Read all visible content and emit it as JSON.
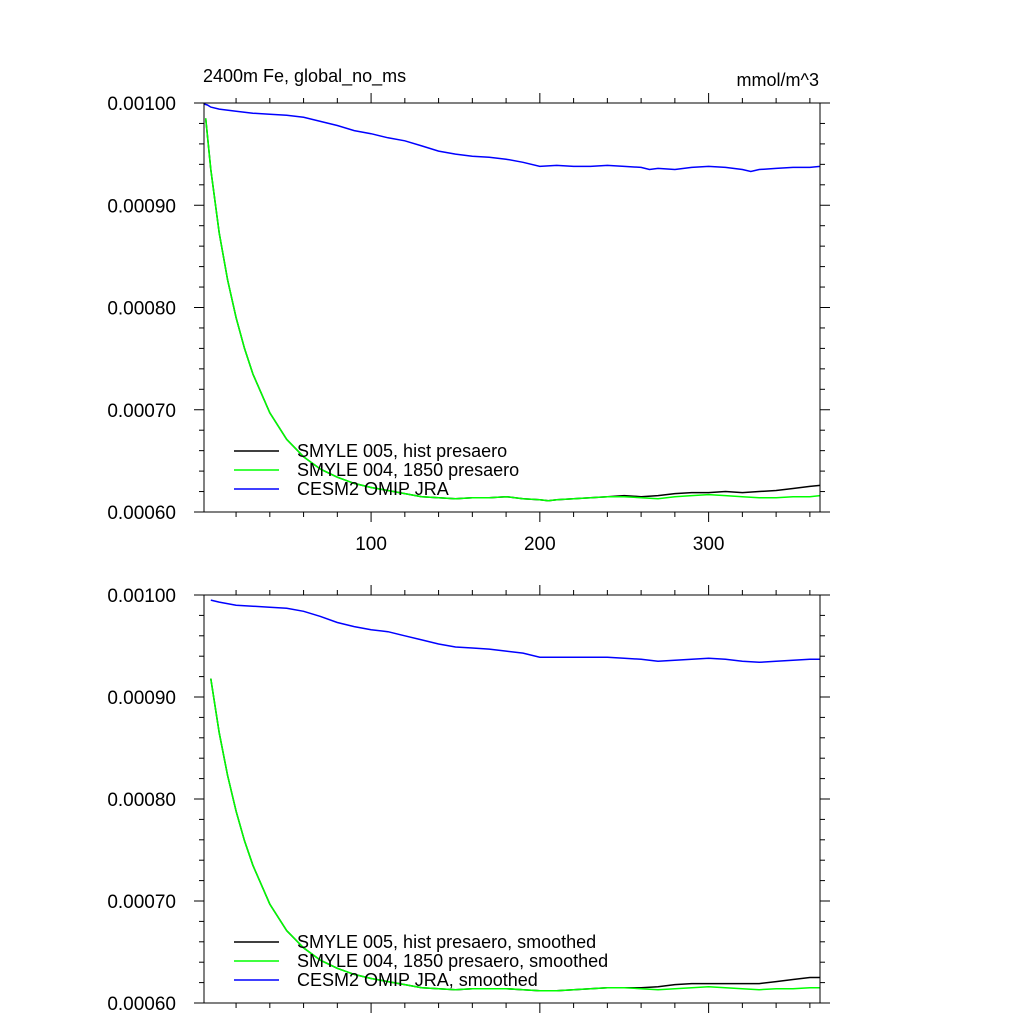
{
  "chart_data": [
    {
      "type": "line",
      "title": "2400m Fe, global_no_ms",
      "units": "mmol/m^3",
      "xlim": [
        1,
        366
      ],
      "ylim": [
        0.0006,
        0.001
      ],
      "x_ticks": [
        100,
        200,
        300
      ],
      "x_tick_labels": [
        "100",
        "200",
        "300"
      ],
      "y_ticks": [
        0.0006,
        0.0007,
        0.0008,
        0.0009,
        0.001
      ],
      "y_tick_labels": [
        "0.00060",
        "0.00070",
        "0.00080",
        "0.00090",
        "0.00100"
      ],
      "grid": false,
      "legend_position": "bottom-left",
      "series": [
        {
          "name": "SMYLE 005, hist presaero",
          "color": "#000000",
          "points": [
            [
              2,
              0.000985
            ],
            [
              5,
              0.000935
            ],
            [
              10,
              0.000873
            ],
            [
              15,
              0.000827
            ],
            [
              20,
              0.00079
            ],
            [
              25,
              0.00076
            ],
            [
              30,
              0.000735
            ],
            [
              40,
              0.000697
            ],
            [
              50,
              0.000671
            ],
            [
              60,
              0.000654
            ],
            [
              70,
              0.000642
            ],
            [
              80,
              0.000634
            ],
            [
              90,
              0.000628
            ],
            [
              100,
              0.000624
            ],
            [
              110,
              0.000621
            ],
            [
              120,
              0.000618
            ],
            [
              130,
              0.000615
            ],
            [
              140,
              0.000614
            ],
            [
              150,
              0.000613
            ],
            [
              160,
              0.000614
            ],
            [
              170,
              0.000614
            ],
            [
              180,
              0.000615
            ],
            [
              190,
              0.000613
            ],
            [
              200,
              0.000612
            ],
            [
              205,
              0.000611
            ],
            [
              210,
              0.000612
            ],
            [
              220,
              0.000613
            ],
            [
              230,
              0.000614
            ],
            [
              240,
              0.000615
            ],
            [
              250,
              0.000616
            ],
            [
              260,
              0.000615
            ],
            [
              270,
              0.000616
            ],
            [
              280,
              0.000618
            ],
            [
              290,
              0.000619
            ],
            [
              300,
              0.000619
            ],
            [
              310,
              0.00062
            ],
            [
              320,
              0.000619
            ],
            [
              330,
              0.00062
            ],
            [
              340,
              0.000621
            ],
            [
              350,
              0.000623
            ],
            [
              360,
              0.000625
            ],
            [
              366,
              0.000626
            ]
          ]
        },
        {
          "name": "SMYLE 004, 1850 presaero",
          "color": "#00ff00",
          "points": [
            [
              2,
              0.000985
            ],
            [
              5,
              0.000935
            ],
            [
              10,
              0.000873
            ],
            [
              15,
              0.000827
            ],
            [
              20,
              0.00079
            ],
            [
              25,
              0.00076
            ],
            [
              30,
              0.000735
            ],
            [
              40,
              0.000697
            ],
            [
              50,
              0.000671
            ],
            [
              60,
              0.000654
            ],
            [
              70,
              0.000642
            ],
            [
              80,
              0.000634
            ],
            [
              90,
              0.000628
            ],
            [
              100,
              0.000624
            ],
            [
              110,
              0.000621
            ],
            [
              120,
              0.000618
            ],
            [
              130,
              0.000615
            ],
            [
              140,
              0.000614
            ],
            [
              150,
              0.000613
            ],
            [
              160,
              0.000614
            ],
            [
              170,
              0.000614
            ],
            [
              180,
              0.000615
            ],
            [
              190,
              0.000613
            ],
            [
              200,
              0.000612
            ],
            [
              205,
              0.000611
            ],
            [
              210,
              0.000612
            ],
            [
              220,
              0.000613
            ],
            [
              230,
              0.000614
            ],
            [
              240,
              0.000615
            ],
            [
              250,
              0.000615
            ],
            [
              260,
              0.000614
            ],
            [
              270,
              0.000613
            ],
            [
              280,
              0.000615
            ],
            [
              290,
              0.000616
            ],
            [
              300,
              0.000617
            ],
            [
              310,
              0.000616
            ],
            [
              320,
              0.000615
            ],
            [
              330,
              0.000614
            ],
            [
              340,
              0.000614
            ],
            [
              350,
              0.000615
            ],
            [
              360,
              0.000615
            ],
            [
              366,
              0.000616
            ]
          ]
        },
        {
          "name": "CESM2 OMIP JRA",
          "color": "#0000ff",
          "points": [
            [
              1,
              0.000999
            ],
            [
              3,
              0.000998
            ],
            [
              5,
              0.000996
            ],
            [
              10,
              0.000994
            ],
            [
              20,
              0.000992
            ],
            [
              30,
              0.00099
            ],
            [
              40,
              0.000989
            ],
            [
              50,
              0.000988
            ],
            [
              60,
              0.000986
            ],
            [
              70,
              0.000982
            ],
            [
              80,
              0.000978
            ],
            [
              90,
              0.000973
            ],
            [
              100,
              0.00097
            ],
            [
              110,
              0.000966
            ],
            [
              120,
              0.000963
            ],
            [
              130,
              0.000958
            ],
            [
              140,
              0.000953
            ],
            [
              150,
              0.00095
            ],
            [
              160,
              0.000948
            ],
            [
              170,
              0.000947
            ],
            [
              180,
              0.000945
            ],
            [
              190,
              0.000942
            ],
            [
              200,
              0.000938
            ],
            [
              210,
              0.000939
            ],
            [
              220,
              0.000938
            ],
            [
              230,
              0.000938
            ],
            [
              240,
              0.000939
            ],
            [
              250,
              0.000938
            ],
            [
              260,
              0.000937
            ],
            [
              265,
              0.000935
            ],
            [
              270,
              0.000936
            ],
            [
              280,
              0.000935
            ],
            [
              290,
              0.000937
            ],
            [
              300,
              0.000938
            ],
            [
              310,
              0.000937
            ],
            [
              320,
              0.000935
            ],
            [
              325,
              0.000933
            ],
            [
              330,
              0.000935
            ],
            [
              340,
              0.000936
            ],
            [
              350,
              0.000937
            ],
            [
              360,
              0.000937
            ],
            [
              366,
              0.000938
            ]
          ]
        }
      ]
    },
    {
      "type": "line",
      "title": "",
      "xlim": [
        1,
        366
      ],
      "ylim": [
        0.0006,
        0.001
      ],
      "x_ticks": [
        100,
        200,
        300
      ],
      "x_tick_labels": [],
      "y_ticks": [
        0.0006,
        0.0007,
        0.0008,
        0.0009,
        0.001
      ],
      "y_tick_labels": [
        "0.00060",
        "0.00070",
        "0.00080",
        "0.00090",
        "0.00100"
      ],
      "grid": false,
      "legend_position": "bottom-left",
      "series": [
        {
          "name": "SMYLE 005, hist presaero, smoothed",
          "color": "#000000",
          "points": [
            [
              5,
              0.000918
            ],
            [
              10,
              0.000865
            ],
            [
              15,
              0.000823
            ],
            [
              20,
              0.000788
            ],
            [
              25,
              0.000759
            ],
            [
              30,
              0.000735
            ],
            [
              40,
              0.000697
            ],
            [
              50,
              0.000671
            ],
            [
              60,
              0.000654
            ],
            [
              70,
              0.000642
            ],
            [
              80,
              0.000634
            ],
            [
              90,
              0.000628
            ],
            [
              100,
              0.000624
            ],
            [
              110,
              0.000621
            ],
            [
              120,
              0.000618
            ],
            [
              130,
              0.000615
            ],
            [
              140,
              0.000614
            ],
            [
              150,
              0.000613
            ],
            [
              160,
              0.000614
            ],
            [
              170,
              0.000614
            ],
            [
              180,
              0.000614
            ],
            [
              190,
              0.000613
            ],
            [
              200,
              0.000612
            ],
            [
              210,
              0.000612
            ],
            [
              220,
              0.000613
            ],
            [
              230,
              0.000614
            ],
            [
              240,
              0.000615
            ],
            [
              250,
              0.000615
            ],
            [
              260,
              0.000615
            ],
            [
              270,
              0.000616
            ],
            [
              280,
              0.000618
            ],
            [
              290,
              0.000619
            ],
            [
              300,
              0.000619
            ],
            [
              310,
              0.000619
            ],
            [
              320,
              0.000619
            ],
            [
              330,
              0.000619
            ],
            [
              340,
              0.000621
            ],
            [
              350,
              0.000623
            ],
            [
              360,
              0.000625
            ],
            [
              366,
              0.000625
            ]
          ]
        },
        {
          "name": "SMYLE 004, 1850 presaero, smoothed",
          "color": "#00ff00",
          "points": [
            [
              5,
              0.000918
            ],
            [
              10,
              0.000865
            ],
            [
              15,
              0.000823
            ],
            [
              20,
              0.000788
            ],
            [
              25,
              0.000759
            ],
            [
              30,
              0.000735
            ],
            [
              40,
              0.000697
            ],
            [
              50,
              0.000671
            ],
            [
              60,
              0.000654
            ],
            [
              70,
              0.000642
            ],
            [
              80,
              0.000634
            ],
            [
              90,
              0.000628
            ],
            [
              100,
              0.000624
            ],
            [
              110,
              0.000621
            ],
            [
              120,
              0.000618
            ],
            [
              130,
              0.000615
            ],
            [
              140,
              0.000614
            ],
            [
              150,
              0.000613
            ],
            [
              160,
              0.000614
            ],
            [
              170,
              0.000614
            ],
            [
              180,
              0.000614
            ],
            [
              190,
              0.000613
            ],
            [
              200,
              0.000612
            ],
            [
              210,
              0.000612
            ],
            [
              220,
              0.000613
            ],
            [
              230,
              0.000614
            ],
            [
              240,
              0.000615
            ],
            [
              250,
              0.000615
            ],
            [
              260,
              0.000614
            ],
            [
              270,
              0.000613
            ],
            [
              280,
              0.000614
            ],
            [
              290,
              0.000615
            ],
            [
              300,
              0.000616
            ],
            [
              310,
              0.000615
            ],
            [
              320,
              0.000614
            ],
            [
              330,
              0.000613
            ],
            [
              340,
              0.000614
            ],
            [
              350,
              0.000614
            ],
            [
              360,
              0.000615
            ],
            [
              366,
              0.000615
            ]
          ]
        },
        {
          "name": "CESM2 OMIP JRA, smoothed",
          "color": "#0000ff",
          "points": [
            [
              5,
              0.000995
            ],
            [
              10,
              0.000993
            ],
            [
              20,
              0.00099
            ],
            [
              30,
              0.000989
            ],
            [
              40,
              0.000988
            ],
            [
              50,
              0.000987
            ],
            [
              60,
              0.000984
            ],
            [
              70,
              0.000979
            ],
            [
              80,
              0.000973
            ],
            [
              90,
              0.000969
            ],
            [
              100,
              0.000966
            ],
            [
              110,
              0.000964
            ],
            [
              120,
              0.00096
            ],
            [
              130,
              0.000956
            ],
            [
              140,
              0.000952
            ],
            [
              150,
              0.000949
            ],
            [
              160,
              0.000948
            ],
            [
              170,
              0.000947
            ],
            [
              180,
              0.000945
            ],
            [
              190,
              0.000943
            ],
            [
              200,
              0.000939
            ],
            [
              210,
              0.000939
            ],
            [
              220,
              0.000939
            ],
            [
              230,
              0.000939
            ],
            [
              240,
              0.000939
            ],
            [
              250,
              0.000938
            ],
            [
              260,
              0.000937
            ],
            [
              270,
              0.000935
            ],
            [
              280,
              0.000936
            ],
            [
              290,
              0.000937
            ],
            [
              300,
              0.000938
            ],
            [
              310,
              0.000937
            ],
            [
              320,
              0.000935
            ],
            [
              330,
              0.000934
            ],
            [
              340,
              0.000935
            ],
            [
              350,
              0.000936
            ],
            [
              360,
              0.000937
            ],
            [
              366,
              0.000937
            ]
          ]
        }
      ]
    }
  ]
}
